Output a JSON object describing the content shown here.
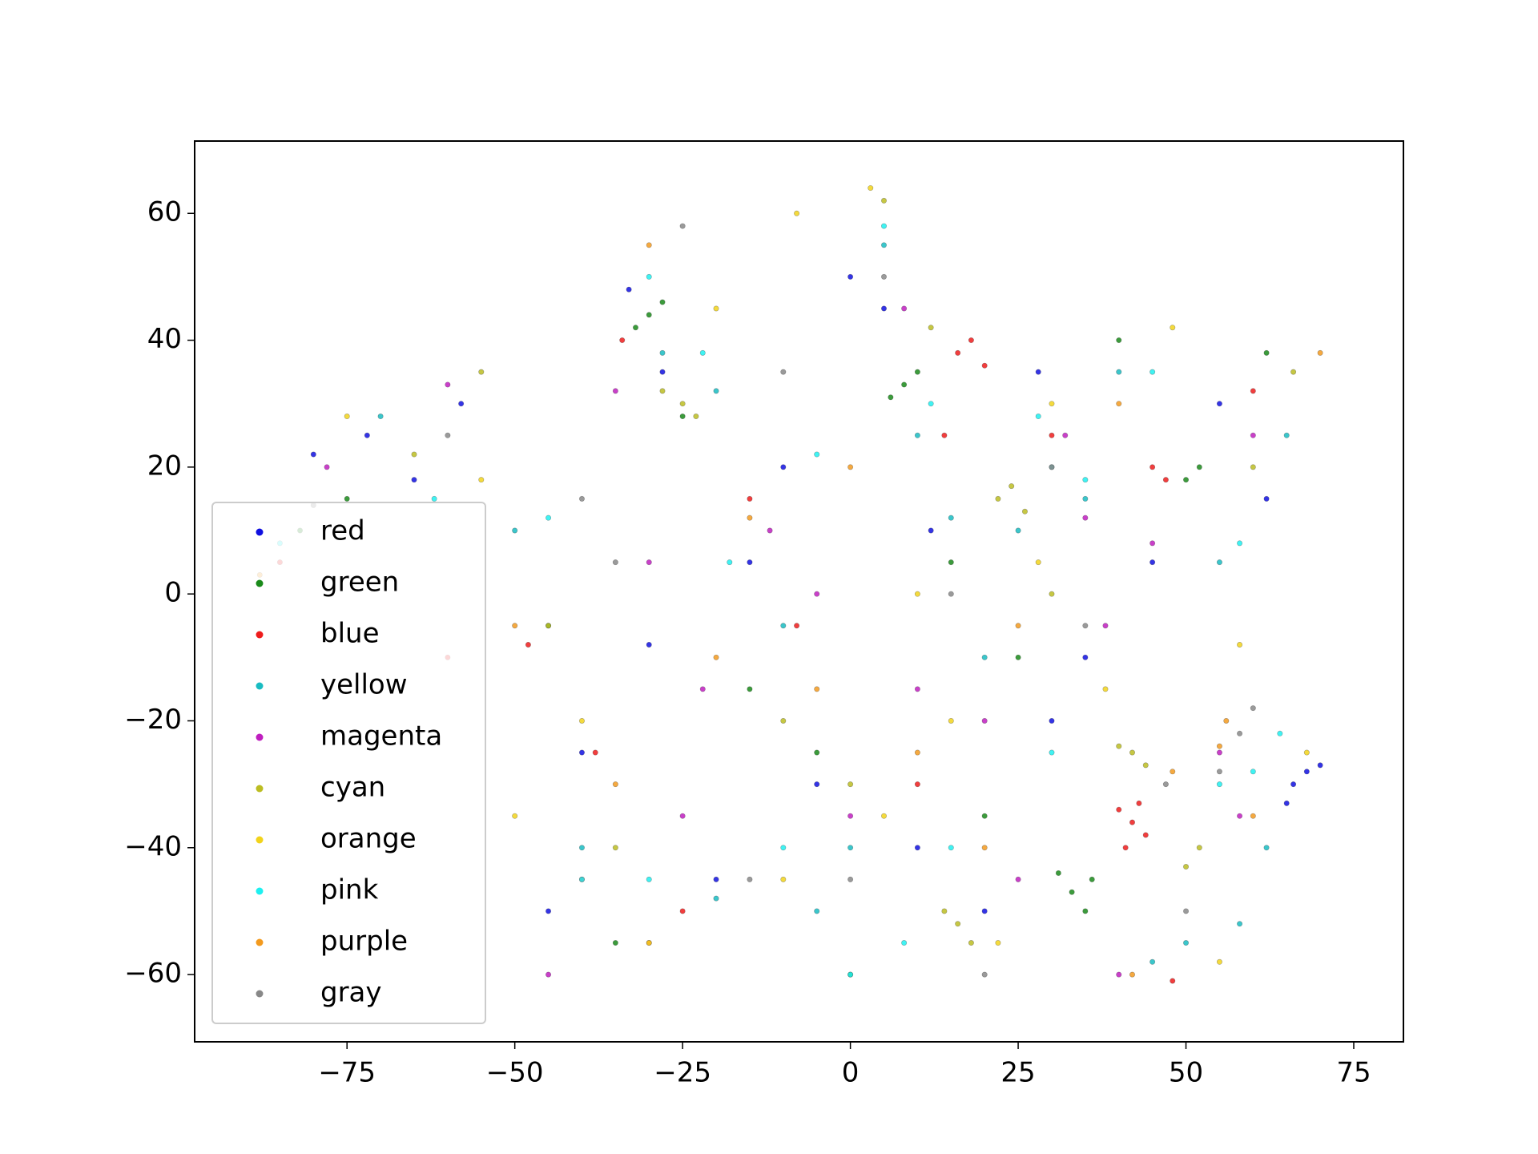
{
  "chart_data": {
    "type": "scatter",
    "xlim": [
      -97.7,
      82.4
    ],
    "ylim": [
      -70.6,
      71.4
    ],
    "xticks": [
      {
        "value": -75,
        "label": "−75"
      },
      {
        "value": -50,
        "label": "−50"
      },
      {
        "value": -25,
        "label": "−25"
      },
      0,
      25,
      50,
      75
    ],
    "yticks": [
      {
        "value": -60,
        "label": "−60"
      },
      {
        "value": -40,
        "label": "−40"
      },
      {
        "value": -20,
        "label": "−20"
      },
      0,
      20,
      40,
      60
    ],
    "grid": false,
    "legend": "lower left",
    "series": [
      {
        "name": "red",
        "color": "#1010e0",
        "x": [
          -80,
          -72,
          -65,
          -58,
          -40,
          -33,
          -28,
          -20,
          -10,
          -5,
          0,
          5,
          12,
          20,
          28,
          35,
          45,
          55,
          62,
          66,
          68,
          70,
          65,
          -45,
          -30,
          10,
          30,
          -15
        ],
        "y": [
          22,
          25,
          18,
          30,
          -25,
          48,
          35,
          -45,
          20,
          -30,
          50,
          45,
          10,
          -50,
          35,
          -10,
          5,
          30,
          15,
          -30,
          -28,
          -27,
          -33,
          -50,
          -8,
          -40,
          -20,
          5
        ]
      },
      {
        "name": "green",
        "color": "#1a8a1a",
        "x": [
          -82,
          -75,
          -30,
          -28,
          -32,
          -25,
          8,
          6,
          10,
          33,
          31,
          35,
          36,
          52,
          50,
          -45,
          -15,
          0,
          20,
          40,
          62,
          -35,
          15,
          -5,
          25
        ],
        "y": [
          10,
          15,
          44,
          46,
          42,
          28,
          33,
          31,
          35,
          -47,
          -44,
          -50,
          -45,
          20,
          18,
          -5,
          -15,
          -60,
          -35,
          40,
          38,
          -55,
          5,
          -25,
          -10
        ]
      },
      {
        "name": "blue",
        "color": "#ee1c1c",
        "x": [
          -85,
          -60,
          -34,
          -38,
          -25,
          16,
          18,
          20,
          14,
          42,
          40,
          44,
          41,
          43,
          45,
          47,
          -40,
          -30,
          10,
          -8,
          30,
          60,
          -48,
          48,
          -15
        ],
        "y": [
          5,
          -10,
          40,
          -25,
          -50,
          38,
          40,
          36,
          25,
          -36,
          -34,
          -38,
          -40,
          -33,
          20,
          18,
          -45,
          -55,
          -30,
          -5,
          25,
          32,
          -8,
          -61,
          15
        ]
      },
      {
        "name": "yellow",
        "color": "#19bcc2",
        "x": [
          -70,
          -50,
          -28,
          -20,
          -10,
          5,
          10,
          25,
          30,
          35,
          40,
          50,
          58,
          62,
          65,
          -40,
          -20,
          0,
          20,
          45,
          55,
          -5,
          15
        ],
        "y": [
          28,
          10,
          38,
          32,
          -5,
          55,
          25,
          10,
          20,
          15,
          35,
          -55,
          -52,
          -40,
          25,
          -40,
          -48,
          -40,
          -10,
          -58,
          5,
          -50,
          12
        ]
      },
      {
        "name": "magenta",
        "color": "#bf1fbf",
        "x": [
          -78,
          -60,
          -35,
          -22,
          -12,
          0,
          8,
          20,
          32,
          35,
          38,
          55,
          58,
          60,
          -45,
          -25,
          -5,
          10,
          25,
          45,
          -30,
          40
        ],
        "y": [
          20,
          33,
          32,
          -15,
          10,
          -35,
          45,
          -20,
          25,
          12,
          -5,
          -25,
          -35,
          25,
          -60,
          -35,
          0,
          -15,
          -45,
          8,
          5,
          -60
        ]
      },
      {
        "name": "cyan",
        "color": "#bcbd22",
        "x": [
          -65,
          -55,
          -25,
          -23,
          -28,
          12,
          22,
          24,
          26,
          42,
          40,
          44,
          16,
          14,
          18,
          50,
          52,
          60,
          -45,
          -10,
          0,
          30,
          66,
          -35,
          5
        ],
        "y": [
          22,
          35,
          30,
          28,
          32,
          42,
          15,
          17,
          13,
          -25,
          -24,
          -27,
          -52,
          -50,
          -55,
          -43,
          -40,
          20,
          -5,
          -20,
          -30,
          0,
          35,
          -40,
          62
        ]
      },
      {
        "name": "orange",
        "color": "#f2d31b",
        "x": [
          -75,
          -55,
          -40,
          -20,
          -8,
          3,
          15,
          28,
          38,
          48,
          58,
          68,
          -30,
          -10,
          5,
          22,
          30,
          55,
          -50,
          10
        ],
        "y": [
          28,
          18,
          -20,
          45,
          60,
          64,
          -20,
          5,
          -15,
          42,
          -8,
          -25,
          -55,
          -45,
          -35,
          -55,
          30,
          -58,
          -35,
          0
        ]
      },
      {
        "name": "pink",
        "color": "#1ef0f0",
        "x": [
          -85,
          -62,
          -45,
          -30,
          -22,
          -5,
          5,
          12,
          28,
          35,
          45,
          55,
          60,
          64,
          -40,
          -30,
          -10,
          0,
          15,
          30,
          58,
          -18,
          8
        ],
        "y": [
          8,
          15,
          12,
          50,
          38,
          22,
          58,
          30,
          28,
          18,
          35,
          -30,
          -28,
          -22,
          -45,
          -45,
          -40,
          -60,
          -40,
          -25,
          8,
          5,
          -55
        ]
      },
      {
        "name": "purple",
        "color": "#f39a1e",
        "x": [
          -88,
          -50,
          -30,
          -15,
          0,
          10,
          25,
          40,
          48,
          55,
          60,
          70,
          -35,
          -5,
          20,
          42,
          56,
          -20
        ],
        "y": [
          3,
          -5,
          55,
          12,
          20,
          -25,
          -5,
          30,
          -28,
          -24,
          -35,
          38,
          -30,
          -15,
          -40,
          -60,
          -20,
          -10
        ]
      },
      {
        "name": "gray",
        "color": "#888888",
        "x": [
          -80,
          -60,
          -25,
          -10,
          5,
          20,
          35,
          47,
          55,
          58,
          60,
          -40,
          -15,
          15,
          30,
          50,
          -35,
          0
        ],
        "y": [
          14,
          25,
          58,
          35,
          50,
          -60,
          -5,
          -30,
          -28,
          -22,
          -18,
          15,
          -45,
          0,
          20,
          -50,
          5,
          -45
        ]
      }
    ]
  }
}
